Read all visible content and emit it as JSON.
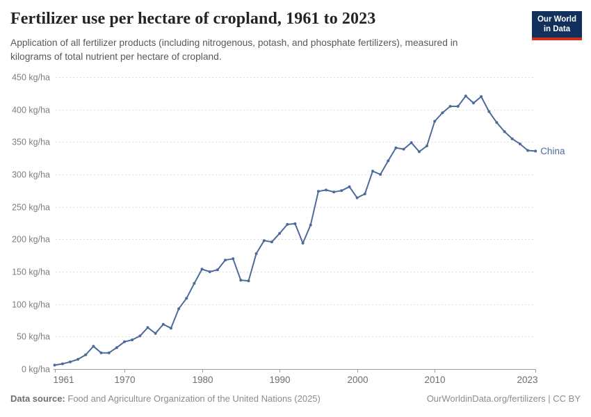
{
  "header": {
    "title": "Fertilizer use per hectare of cropland, 1961 to 2023",
    "subtitle": "Application of all fertilizer products (including nitrogenous, potash, and phosphate fertilizers), measured in kilograms of total nutrient per hectare of cropland."
  },
  "logo": {
    "line1": "Our World",
    "line2": "in Data",
    "bg_color": "#12305c",
    "stripe_color": "#cf2d1e"
  },
  "footer": {
    "source_label": "Data source:",
    "source_value": "Food and Agriculture Organization of the United Nations (2025)",
    "credit": "OurWorldinData.org/fertilizers | CC BY"
  },
  "chart_data": {
    "type": "line",
    "title": "Fertilizer use per hectare of cropland, 1961 to 2023",
    "ylabel": "kg/ha",
    "xlabel": "",
    "ylim": [
      0,
      450
    ],
    "xlim": [
      1961,
      2023
    ],
    "grid": true,
    "legend_position": "end-of-line",
    "yticks": [
      0,
      50,
      100,
      150,
      200,
      250,
      300,
      350,
      400,
      450
    ],
    "ytick_suffix": " kg/ha",
    "xticks": [
      1961,
      1970,
      1980,
      1990,
      2000,
      2010,
      2023
    ],
    "x": [
      1961,
      1962,
      1963,
      1964,
      1965,
      1966,
      1967,
      1968,
      1969,
      1970,
      1971,
      1972,
      1973,
      1974,
      1975,
      1976,
      1977,
      1978,
      1979,
      1980,
      1981,
      1982,
      1983,
      1984,
      1985,
      1986,
      1987,
      1988,
      1989,
      1990,
      1991,
      1992,
      1993,
      1994,
      1995,
      1996,
      1997,
      1998,
      1999,
      2000,
      2001,
      2002,
      2003,
      2004,
      2005,
      2006,
      2007,
      2008,
      2009,
      2010,
      2011,
      2012,
      2013,
      2014,
      2015,
      2016,
      2017,
      2018,
      2019,
      2020,
      2021,
      2022,
      2023
    ],
    "series": [
      {
        "name": "China",
        "color": "#4c6a9c",
        "values": [
          6,
          8,
          11,
          15,
          22,
          35,
          25,
          25,
          33,
          42,
          45,
          51,
          64,
          55,
          69,
          63,
          93,
          109,
          132,
          154,
          150,
          153,
          168,
          170,
          137,
          136,
          178,
          198,
          196,
          209,
          223,
          224,
          194,
          222,
          274,
          276,
          273,
          275,
          281,
          264,
          270,
          305,
          300,
          321,
          341,
          339,
          349,
          335,
          344,
          382,
          395,
          405,
          405,
          421,
          410,
          420,
          397,
          380,
          366,
          355,
          347,
          337,
          336
        ]
      }
    ]
  }
}
